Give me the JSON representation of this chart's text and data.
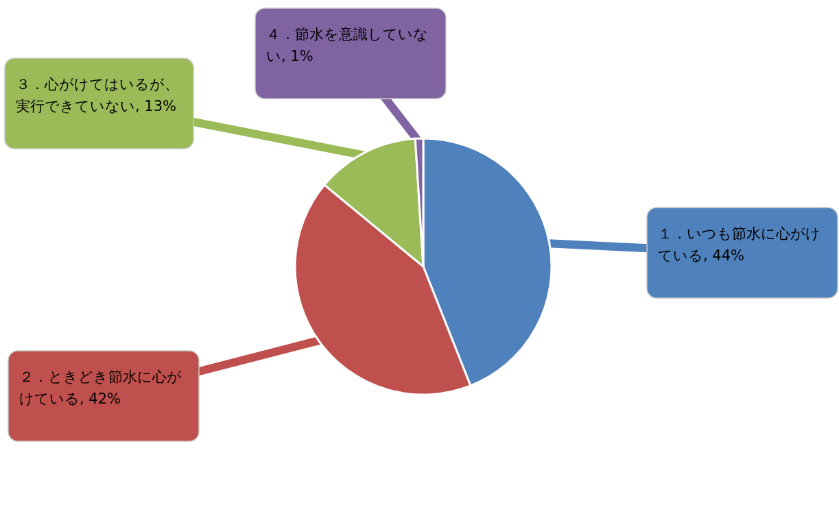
{
  "chart_data": {
    "type": "pie",
    "categories": [
      "１．いつも節水に心がけている",
      "２．ときどき節水に心がけている",
      "３．心がけてはいるが、実行できていない",
      "４．節水を意識していない"
    ],
    "values": [
      44,
      42,
      13,
      1
    ],
    "colors": [
      "#4f81bd",
      "#c0504d",
      "#9bbb59",
      "#8064a2"
    ],
    "value_labels": [
      "44%",
      "42%",
      "13%",
      "1%"
    ]
  }
}
